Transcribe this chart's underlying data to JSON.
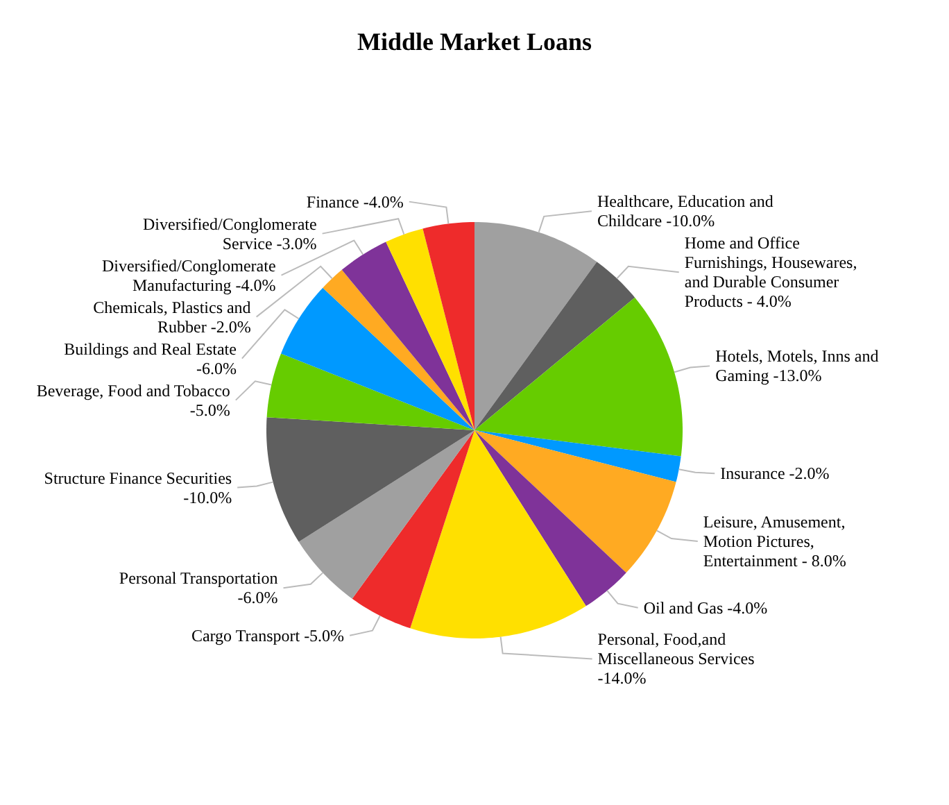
{
  "chart_data": {
    "type": "pie",
    "title": "Middle Market Loans",
    "categories": [
      "Healthcare, Education and Childcare -10.0%",
      "Home and Office Furnishings, Housewares, and Durable Consumer Products - 4.0%",
      "Hotels, Motels, Inns and Gaming -13.0%",
      "Insurance -2.0%",
      "Leisure, Amusement, Motion Pictures, Entertainment - 8.0%",
      "Oil and Gas -4.0%",
      "Personal, Food,and Miscellaneous Services -14.0%",
      "Cargo Transport -5.0%",
      "Personal Transportation -6.0%",
      "Structure Finance Securities -10.0%",
      "Beverage, Food and Tobacco -5.0%",
      "Buildings and Real Estate -6.0%",
      "Chemicals, Plastics and Rubber -2.0%",
      "Diversified/Conglomerate Manufacturing -4.0%",
      "Diversified/Conglomerate Service -3.0%",
      "Finance -4.0%"
    ],
    "values": [
      10,
      4,
      13,
      2,
      8,
      4,
      14,
      5,
      6,
      10,
      5,
      6,
      2,
      4,
      3,
      4
    ],
    "colors": [
      "#a0a0a0",
      "#5f5f5f",
      "#66cc00",
      "#0099ff",
      "#ffaa22",
      "#7f3399",
      "#ffe000",
      "#ee2b2b",
      "#a0a0a0",
      "#5f5f5f",
      "#66cc00",
      "#0099ff",
      "#ffaa22",
      "#7f3399",
      "#ffe000",
      "#ee2b2b"
    ]
  }
}
